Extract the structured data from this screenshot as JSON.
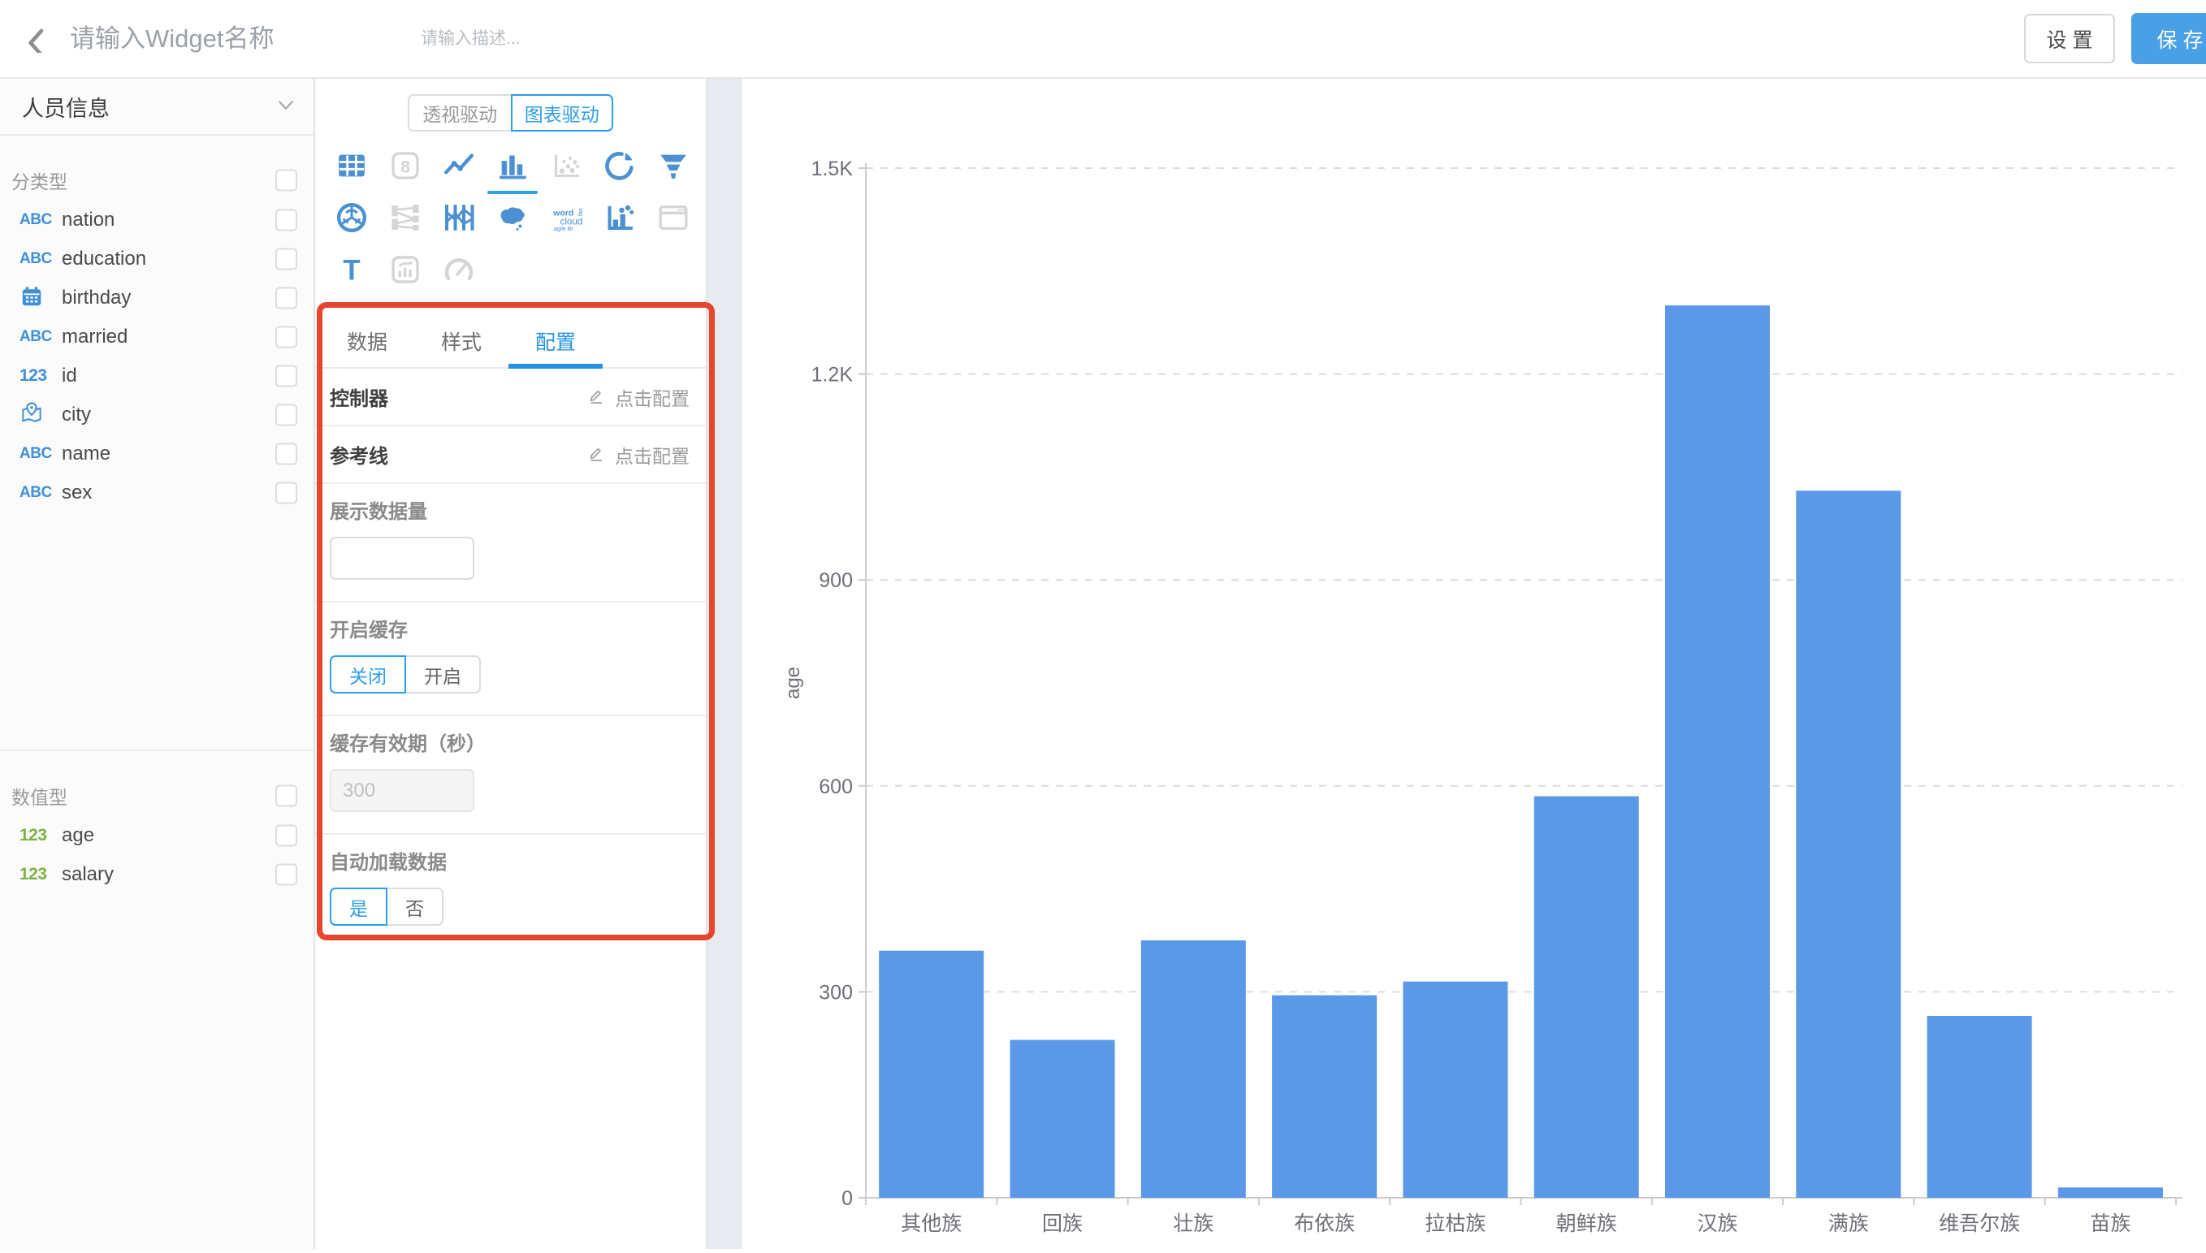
{
  "topbar": {
    "back_icon": "chevron-left",
    "title_placeholder": "请输入Widget名称",
    "desc_placeholder": "请输入描述...",
    "settings_label": "设 置",
    "save_label": "保 存"
  },
  "sidebar": {
    "view_name": "人员信息",
    "sections": [
      {
        "label": "分类型",
        "fields": [
          {
            "icon": "abc",
            "name": "nation"
          },
          {
            "icon": "abc",
            "name": "education"
          },
          {
            "icon": "calendar",
            "name": "birthday"
          },
          {
            "icon": "abc",
            "name": "married"
          },
          {
            "icon": "num",
            "name": "id"
          },
          {
            "icon": "pin",
            "name": "city"
          },
          {
            "icon": "abc",
            "name": "name"
          },
          {
            "icon": "abc",
            "name": "sex"
          }
        ]
      },
      {
        "label": "数值型",
        "fields": [
          {
            "icon": "numg",
            "name": "age"
          },
          {
            "icon": "numg",
            "name": "salary"
          }
        ]
      }
    ]
  },
  "panel": {
    "mode_toggle": {
      "options": [
        "透视驱动",
        "图表驱动"
      ],
      "selected": 1
    },
    "chart_types": [
      {
        "name": "table",
        "state": "active"
      },
      {
        "name": "scorecard",
        "state": "disabled"
      },
      {
        "name": "line",
        "state": "active"
      },
      {
        "name": "bar",
        "state": "selected"
      },
      {
        "name": "scatter",
        "state": "disabled"
      },
      {
        "name": "pie",
        "state": "active"
      },
      {
        "name": "funnel",
        "state": "active"
      },
      {
        "name": "radar",
        "state": "active"
      },
      {
        "name": "sankey",
        "state": "disabled"
      },
      {
        "name": "parallel",
        "state": "active"
      },
      {
        "name": "map",
        "state": "active"
      },
      {
        "name": "wordcloud",
        "state": "active"
      },
      {
        "name": "combo",
        "state": "active"
      },
      {
        "name": "iframe",
        "state": "disabled"
      },
      {
        "name": "text",
        "state": "active"
      },
      {
        "name": "richtext",
        "state": "disabled"
      },
      {
        "name": "gauge",
        "state": "disabled"
      }
    ],
    "tabs": {
      "labels": [
        "数据",
        "样式",
        "配置"
      ],
      "selected": 2
    },
    "config_rows": [
      {
        "label": "控制器",
        "action": "点击配置"
      },
      {
        "label": "参考线",
        "action": "点击配置"
      }
    ],
    "display_count": {
      "label": "展示数据量",
      "value": ""
    },
    "cache": {
      "label": "开启缓存",
      "options": [
        "关闭",
        "开启"
      ],
      "selected": 0
    },
    "cache_ttl": {
      "label": "缓存有效期（秒）",
      "value": "300",
      "disabled": true
    },
    "autoload": {
      "label": "自动加载数据",
      "options": [
        "是",
        "否"
      ],
      "selected": 0
    }
  },
  "chart_data": {
    "type": "bar",
    "title": "",
    "categories": [
      "其他族",
      "回族",
      "壮族",
      "布依族",
      "拉枯族",
      "朝鲜族",
      "汉族",
      "满族",
      "维吾尔族",
      "苗族"
    ],
    "values": [
      360,
      230,
      375,
      295,
      315,
      585,
      1300,
      1030,
      265,
      15
    ],
    "xlabel": "",
    "ylabel": "age",
    "ylim": [
      0,
      1500
    ],
    "yticks": [
      {
        "v": 0,
        "label": "0"
      },
      {
        "v": 300,
        "label": "300"
      },
      {
        "v": 600,
        "label": "600"
      },
      {
        "v": 900,
        "label": "900"
      },
      {
        "v": 1200,
        "label": "1.2K"
      },
      {
        "v": 1500,
        "label": "1.5K"
      }
    ],
    "grid": "dashed",
    "legend": "none",
    "bar_color": "#5b98e8"
  },
  "colors": {
    "accent_blue": "#2d9ee8",
    "icon_blue": "#4a90d2",
    "icon_grey": "#d5d5d5",
    "field_blue": "#3f90d8",
    "field_green": "#7cb342",
    "bar_blue": "#5b98e8",
    "save_button": "#4aa0e6",
    "annotation_red": "#e8452e"
  }
}
